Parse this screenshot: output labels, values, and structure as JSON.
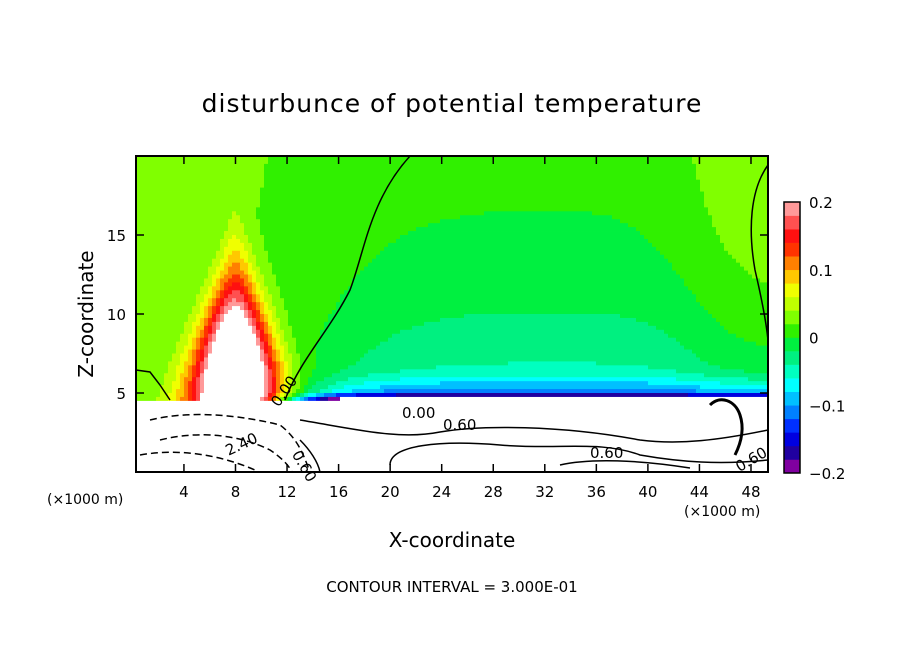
{
  "chart_data": {
    "type": "heatmap",
    "title": "disturbunce of potential temperature",
    "xlabel": "X-coordinate",
    "ylabel": "Z-coordinate",
    "x_unit_left": "(×1000 m)",
    "x_unit_right": "(×1000 m)",
    "xlim": [
      0.28,
      49.32
    ],
    "ylim": [
      0,
      20
    ],
    "x_ticks": [
      4,
      8,
      12,
      16,
      20,
      24,
      28,
      32,
      36,
      40,
      44,
      48
    ],
    "y_ticks": [
      5,
      10,
      15
    ],
    "colorbar": {
      "min": -0.2,
      "max": 0.2,
      "step": 0.02,
      "tick_labels": [
        "0.2",
        "0.1",
        "0",
        "−0.1",
        "−0.2"
      ],
      "tick_values": [
        0.2,
        0.1,
        0,
        -0.1,
        -0.2
      ],
      "colors": [
        "#8000a0",
        "#2000a0",
        "#0000e0",
        "#0030ff",
        "#0080ff",
        "#00c0ff",
        "#00ffff",
        "#00ffc0",
        "#00f080",
        "#00f040",
        "#30f000",
        "#80ff00",
        "#c0ff00",
        "#f0ff00",
        "#ffc800",
        "#ff8000",
        "#ff3300",
        "#ff1010",
        "#ff5050",
        "#ff9999"
      ]
    },
    "features": {
      "warm_anomaly_center_x": 8,
      "warm_anomaly_peak_z": 5.5,
      "warm_anomaly_top_z": 16,
      "lower_layer_top_z": 4.4
    },
    "contour_labels": [
      "0.00",
      "2.40",
      "0.00",
      "0.60",
      "0.60",
      "0.60",
      "0.60"
    ],
    "footer": "CONTOUR INTERVAL = 3.000E-01"
  }
}
